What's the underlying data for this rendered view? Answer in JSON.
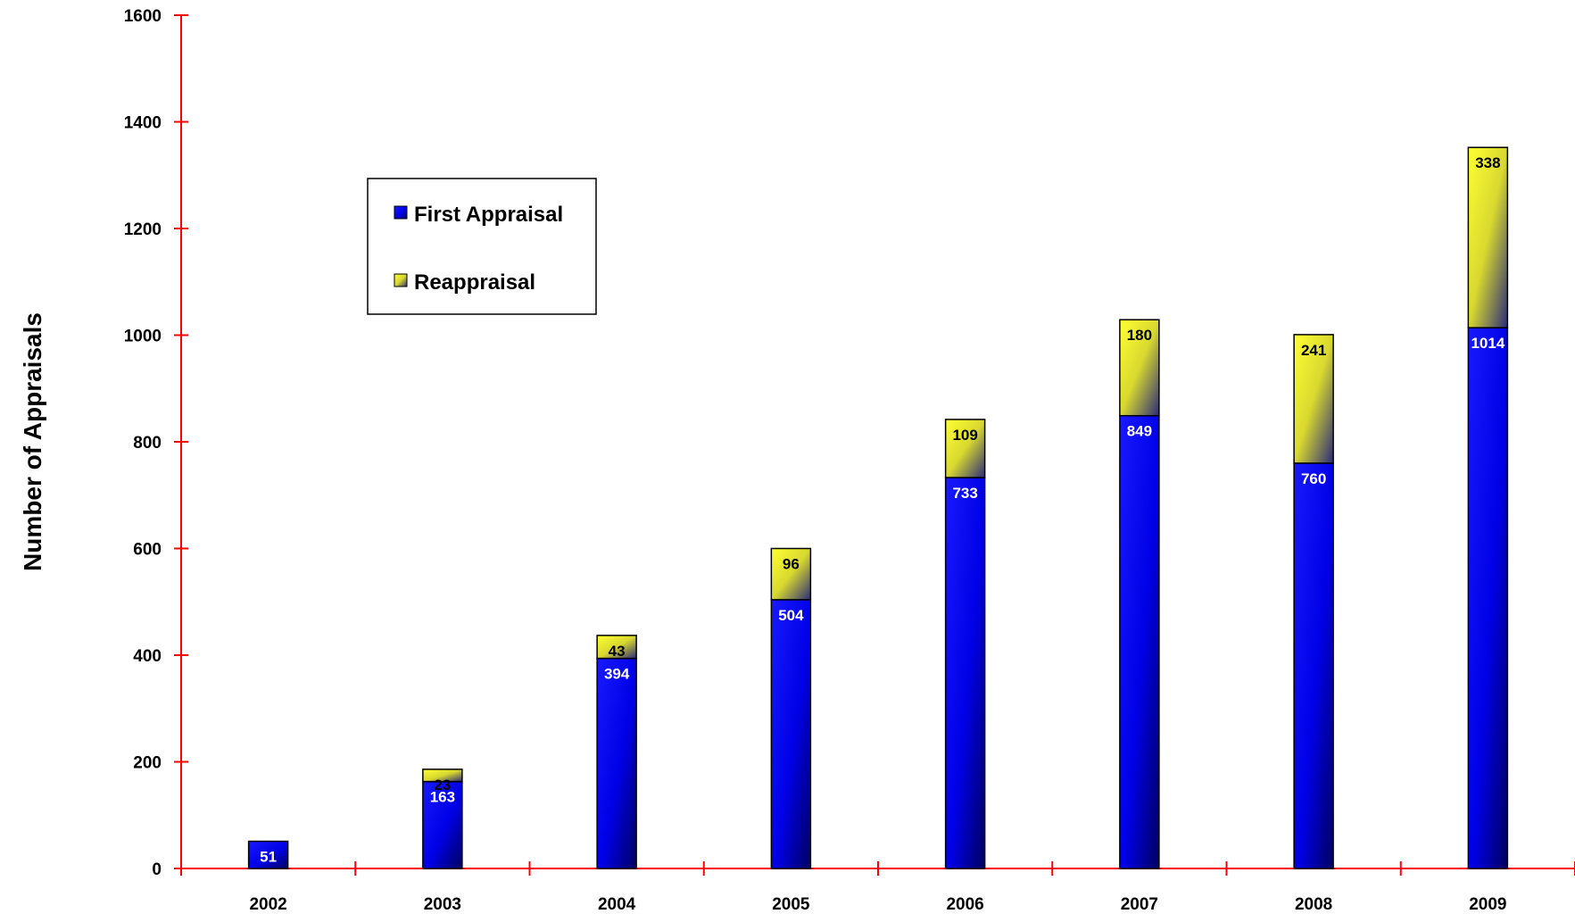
{
  "chart_data": {
    "type": "bar",
    "stacked": true,
    "title": "",
    "xlabel": "",
    "ylabel": "Number of Appraisals",
    "ylim": [
      0,
      1600
    ],
    "yticks": [
      "0",
      "200",
      "400",
      "600",
      "800",
      "1000",
      "1200",
      "1400",
      "1600"
    ],
    "categories": [
      "2002",
      "2003",
      "2004",
      "2005",
      "2006",
      "2007",
      "2008",
      "2009"
    ],
    "series": [
      {
        "name": "First Appraisal",
        "values": [
          51,
          163,
          394,
          504,
          733,
          849,
          760,
          1014
        ],
        "color": "#0000ee"
      },
      {
        "name": "Reappraisal",
        "values": [
          null,
          23,
          43,
          96,
          109,
          180,
          241,
          338
        ],
        "color": "#eeee22"
      }
    ],
    "axis_color": "#ff0000",
    "legend_position": "upper-left",
    "grid": false
  }
}
